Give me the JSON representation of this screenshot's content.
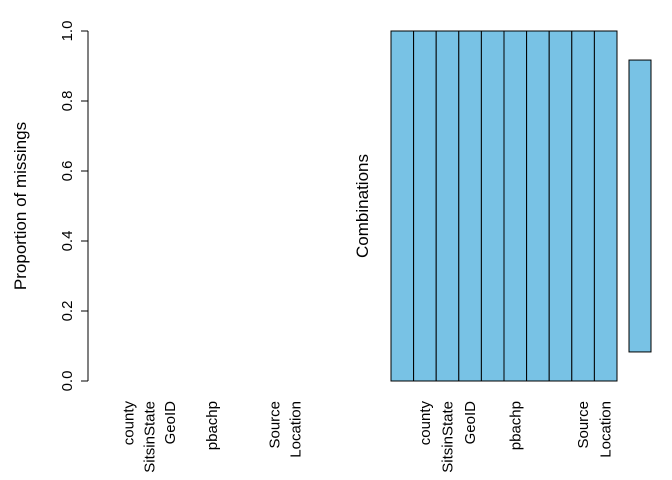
{
  "colors": {
    "bar": "#78C2E5",
    "stroke": "#000000"
  },
  "chart_data": [
    {
      "type": "bar",
      "ylabel": "Proportion of missings",
      "ylim": [
        0,
        1
      ],
      "yticks": [
        "0.0",
        "0.2",
        "0.4",
        "0.6",
        "0.8",
        "1.0"
      ],
      "categories": [
        "",
        "county",
        "SitsinState",
        "GeoID",
        "",
        "pbachp",
        "",
        "",
        "Source",
        "Location"
      ],
      "values": [
        0,
        0,
        0,
        0,
        0,
        0,
        0,
        0,
        0,
        0
      ]
    },
    {
      "type": "heatmap",
      "ylabel": "Combinations",
      "categories": [
        "",
        "county",
        "SitsinState",
        "GeoID",
        "",
        "pbachp",
        "",
        "",
        "Source",
        "Location"
      ],
      "combinations": [
        [
          0,
          0,
          0,
          0,
          0,
          0,
          0,
          0,
          0,
          0
        ]
      ],
      "combination_proportions": [
        1.0
      ]
    }
  ]
}
